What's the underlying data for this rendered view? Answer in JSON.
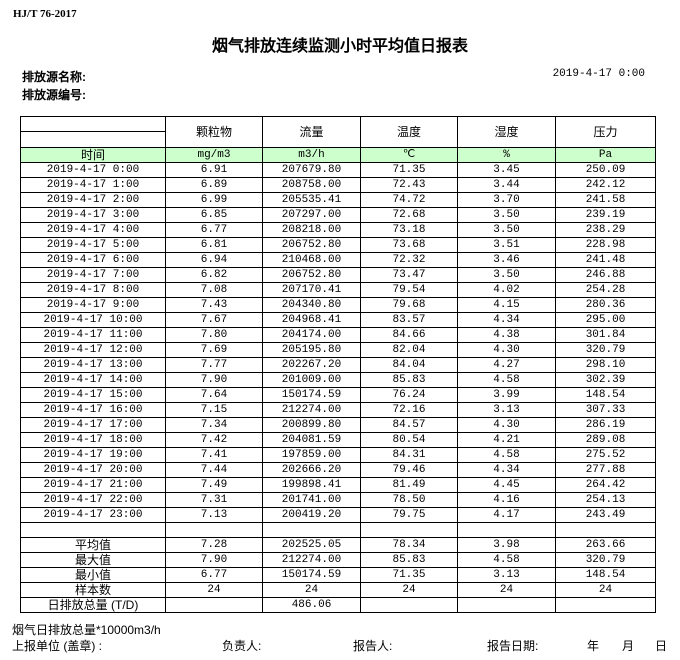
{
  "standard": "HJ/T  76-2017",
  "title": "烟气排放连续监测小时平均值日报表",
  "source_name_label": "排放源名称:",
  "source_id_label": "排放源编号:",
  "report_datetime": "2019-4-17  0:00",
  "table": {
    "headers": [
      "颗粒物",
      "流量",
      "温度",
      "湿度",
      "压力"
    ],
    "time_label": "时间",
    "units": [
      "mg/m3",
      "m3/h",
      "℃",
      "%",
      "Pa"
    ],
    "rows": [
      [
        "2019-4-17 0:00",
        "6.91",
        "207679.80",
        "71.35",
        "3.45",
        "250.09"
      ],
      [
        "2019-4-17 1:00",
        "6.89",
        "208758.00",
        "72.43",
        "3.44",
        "242.12"
      ],
      [
        "2019-4-17 2:00",
        "6.99",
        "205535.41",
        "74.72",
        "3.70",
        "241.58"
      ],
      [
        "2019-4-17 3:00",
        "6.85",
        "207297.00",
        "72.68",
        "3.50",
        "239.19"
      ],
      [
        "2019-4-17 4:00",
        "6.77",
        "208218.00",
        "73.18",
        "3.50",
        "238.29"
      ],
      [
        "2019-4-17 5:00",
        "6.81",
        "206752.80",
        "73.68",
        "3.51",
        "228.98"
      ],
      [
        "2019-4-17 6:00",
        "6.94",
        "210468.00",
        "72.32",
        "3.46",
        "241.48"
      ],
      [
        "2019-4-17 7:00",
        "6.82",
        "206752.80",
        "73.47",
        "3.50",
        "246.88"
      ],
      [
        "2019-4-17 8:00",
        "7.08",
        "207170.41",
        "79.54",
        "4.02",
        "254.28"
      ],
      [
        "2019-4-17 9:00",
        "7.43",
        "204340.80",
        "79.68",
        "4.15",
        "280.36"
      ],
      [
        "2019-4-17 10:00",
        "7.67",
        "204968.41",
        "83.57",
        "4.34",
        "295.00"
      ],
      [
        "2019-4-17 11:00",
        "7.80",
        "204174.00",
        "84.66",
        "4.38",
        "301.84"
      ],
      [
        "2019-4-17 12:00",
        "7.69",
        "205195.80",
        "82.04",
        "4.30",
        "320.79"
      ],
      [
        "2019-4-17 13:00",
        "7.77",
        "202267.20",
        "84.04",
        "4.27",
        "298.10"
      ],
      [
        "2019-4-17 14:00",
        "7.90",
        "201009.00",
        "85.83",
        "4.58",
        "302.39"
      ],
      [
        "2019-4-17 15:00",
        "7.64",
        "150174.59",
        "76.24",
        "3.99",
        "148.54"
      ],
      [
        "2019-4-17 16:00",
        "7.15",
        "212274.00",
        "72.16",
        "3.13",
        "307.33"
      ],
      [
        "2019-4-17 17:00",
        "7.34",
        "200899.80",
        "84.57",
        "4.30",
        "286.19"
      ],
      [
        "2019-4-17 18:00",
        "7.42",
        "204081.59",
        "80.54",
        "4.21",
        "289.08"
      ],
      [
        "2019-4-17 19:00",
        "7.41",
        "197859.00",
        "84.31",
        "4.58",
        "275.52"
      ],
      [
        "2019-4-17 20:00",
        "7.44",
        "202666.20",
        "79.46",
        "4.34",
        "277.88"
      ],
      [
        "2019-4-17 21:00",
        "7.49",
        "199898.41",
        "81.49",
        "4.45",
        "264.42"
      ],
      [
        "2019-4-17 22:00",
        "7.31",
        "201741.00",
        "78.50",
        "4.16",
        "254.13"
      ],
      [
        "2019-4-17 23:00",
        "7.13",
        "200419.20",
        "79.75",
        "4.17",
        "243.49"
      ]
    ],
    "summary": [
      [
        "平均值",
        "7.28",
        "202525.05",
        "78.34",
        "3.98",
        "263.66"
      ],
      [
        "最大值",
        "7.90",
        "212274.00",
        "85.83",
        "4.58",
        "320.79"
      ],
      [
        "最小值",
        "6.77",
        "150174.59",
        "71.35",
        "3.13",
        "148.54"
      ],
      [
        "样本数",
        "24",
        "24",
        "24",
        "24",
        "24"
      ],
      [
        "日排放总量 (T/D)",
        "",
        "486.06",
        "",
        "",
        ""
      ]
    ]
  },
  "footer": {
    "note": "烟气日排放总量*10000m3/h",
    "unit_label": "上报单位 (盖章) :",
    "responsible_label": "负责人:",
    "reporter_label": "报告人:",
    "report_date_label": "报告日期:",
    "year": "年",
    "month": "月",
    "day": "日"
  },
  "colors": {
    "unit_row_bg": "#ccffcc"
  }
}
